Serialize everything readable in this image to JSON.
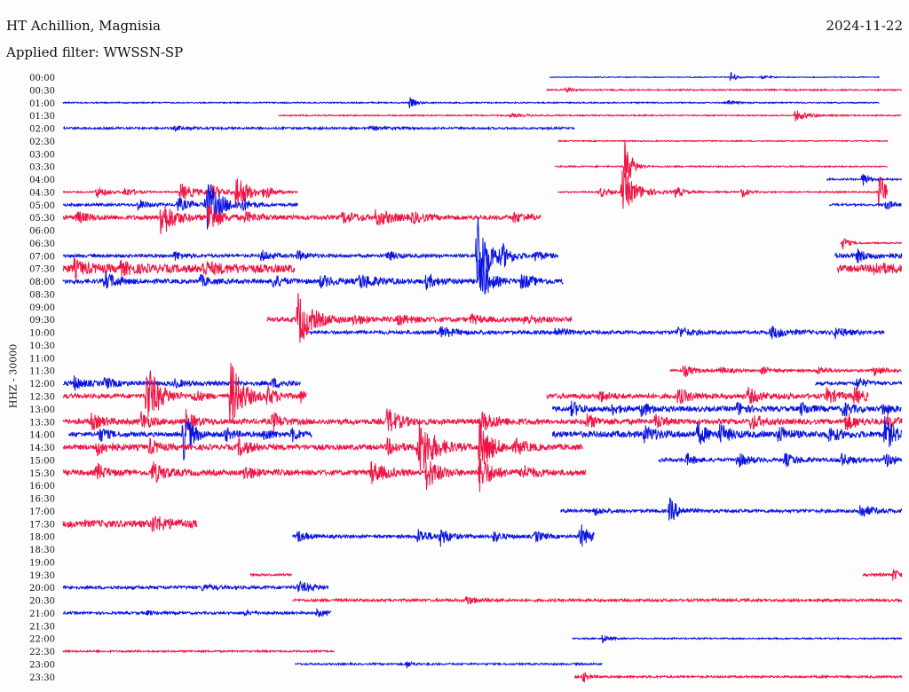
{
  "header": {
    "station": "HT Achillion, Magnisia",
    "date": "2024-11-22",
    "filter": "Applied filter: WWSSN-SP"
  },
  "chart_data": {
    "type": "line",
    "title": "HT Achillion, Magnisia",
    "subtitle": "Applied filter: WWSSN-SP",
    "date": "2024-11-22",
    "ylabel": "HHZ - 30000",
    "colors": {
      "even": "#0a14e0",
      "odd": "#f01444"
    },
    "row_labels": [
      "00:00",
      "00:30",
      "01:00",
      "01:30",
      "02:00",
      "02:30",
      "03:00",
      "03:30",
      "04:00",
      "04:30",
      "05:00",
      "05:30",
      "06:00",
      "06:30",
      "07:00",
      "07:30",
      "08:00",
      "08:30",
      "09:00",
      "09:30",
      "10:00",
      "10:30",
      "11:00",
      "11:30",
      "12:00",
      "12:30",
      "13:00",
      "13:30",
      "14:00",
      "14:30",
      "15:00",
      "15:30",
      "16:00",
      "16:30",
      "17:00",
      "17:30",
      "18:00",
      "18:30",
      "19:00",
      "19:30",
      "20:00",
      "20:30",
      "21:00",
      "21:30",
      "22:00",
      "22:30",
      "23:00",
      "23:30"
    ],
    "x_unit": "minutes past row start",
    "x_range": [
      0,
      30
    ],
    "traces": [
      {
        "row": "00:00",
        "start": 17.4,
        "end": 29.2,
        "noise": 0.5,
        "bursts": [
          [
            23.9,
            7,
            0.15
          ],
          [
            25,
            2,
            0.2
          ]
        ]
      },
      {
        "row": "00:30",
        "start": 17.3,
        "end": 30,
        "noise": 0.8,
        "bursts": [
          [
            18,
            3,
            0.2
          ]
        ]
      },
      {
        "row": "01:00",
        "start": 0,
        "end": 29.2,
        "noise": 0.7,
        "bursts": [
          [
            12.4,
            6,
            0.2
          ],
          [
            23.8,
            2,
            0.3
          ]
        ]
      },
      {
        "row": "01:30",
        "start": 7.7,
        "end": 30,
        "noise": 0.7,
        "bursts": [
          [
            26.2,
            6,
            0.4
          ],
          [
            16,
            2,
            0.5
          ]
        ]
      },
      {
        "row": "02:00",
        "start": 0,
        "end": 18.3,
        "noise": 1.2,
        "bursts": [
          [
            4,
            2,
            0.5
          ],
          [
            11,
            2,
            0.5
          ]
        ]
      },
      {
        "row": "02:30",
        "start": 17.7,
        "end": 29.5,
        "noise": 0.6,
        "bursts": []
      },
      {
        "row": "03:00",
        "start": 0,
        "end": 0,
        "noise": 0,
        "bursts": []
      },
      {
        "row": "03:30",
        "start": 17.6,
        "end": 29.5,
        "noise": 0.8,
        "bursts": [
          [
            20.1,
            35,
            0.2
          ]
        ]
      },
      {
        "row": "04:00",
        "start": 27.3,
        "end": 30,
        "noise": 1,
        "bursts": [
          [
            28.6,
            8,
            0.2
          ]
        ]
      },
      {
        "row": "04:30",
        "start": 0,
        "end": 8.4,
        "noise": 0.8,
        "bursts": [
          [
            1.2,
            7,
            0.3
          ],
          [
            2.2,
            6,
            0.3
          ],
          [
            4.2,
            10,
            0.5
          ],
          [
            5.3,
            8,
            0.4
          ],
          [
            6.2,
            22,
            0.4
          ],
          [
            7.2,
            7,
            0.3
          ]
        ]
      },
      {
        "row": "04:30",
        "start": 17.7,
        "end": 29.5,
        "noise": 0.8,
        "bursts": [
          [
            19.2,
            6,
            0.3
          ],
          [
            20.0,
            24,
            0.5
          ],
          [
            21.9,
            6,
            0.3
          ],
          [
            24.3,
            6,
            0.2
          ],
          [
            29.2,
            22,
            0.3
          ]
        ]
      },
      {
        "row": "05:00",
        "start": 0,
        "end": 8.4,
        "noise": 1.5,
        "bursts": [
          [
            2.7,
            6,
            0.3
          ],
          [
            4.1,
            8,
            0.4
          ],
          [
            5.1,
            30,
            0.5
          ],
          [
            6.4,
            5,
            0.3
          ]
        ]
      },
      {
        "row": "05:00",
        "start": 27.4,
        "end": 30,
        "noise": 1.2,
        "bursts": [
          [
            29.4,
            6,
            0.3
          ]
        ]
      },
      {
        "row": "05:30",
        "start": 0,
        "end": 17.1,
        "noise": 2.5,
        "bursts": [
          [
            0.5,
            6,
            0.4
          ],
          [
            3.5,
            24,
            0.4
          ],
          [
            5.2,
            22,
            0.3
          ],
          [
            6.5,
            5,
            0.5
          ],
          [
            10,
            6,
            0.5
          ],
          [
            11.2,
            8,
            0.6
          ],
          [
            12.5,
            5,
            0.4
          ],
          [
            16.1,
            5,
            0.5
          ]
        ]
      },
      {
        "row": "06:00",
        "start": 0,
        "end": 0,
        "noise": 0,
        "bursts": []
      },
      {
        "row": "06:30",
        "start": 27.8,
        "end": 30,
        "noise": 0.8,
        "bursts": [
          [
            27.9,
            7,
            0.2
          ]
        ]
      },
      {
        "row": "07:00",
        "start": 0,
        "end": 17.7,
        "noise": 1.8,
        "bursts": [
          [
            4,
            5,
            0.3
          ],
          [
            7.1,
            6,
            0.3
          ],
          [
            8.4,
            5,
            0.3
          ],
          [
            11.6,
            6,
            0.3
          ],
          [
            14.8,
            48,
            0.4
          ],
          [
            15.7,
            10,
            0.3
          ],
          [
            16.9,
            6,
            0.3
          ]
        ]
      },
      {
        "row": "07:00",
        "start": 27.6,
        "end": 30,
        "noise": 3,
        "bursts": [
          [
            28.4,
            6,
            0.3
          ]
        ]
      },
      {
        "row": "07:30",
        "start": 0,
        "end": 8.3,
        "noise": 4.5,
        "bursts": [
          [
            0.4,
            8,
            0.4
          ],
          [
            2,
            6,
            0.5
          ],
          [
            5,
            6,
            0.6
          ]
        ]
      },
      {
        "row": "07:30",
        "start": 27.7,
        "end": 30,
        "noise": 4,
        "bursts": [
          [
            29,
            6,
            0.5
          ]
        ]
      },
      {
        "row": "08:00",
        "start": 0,
        "end": 17.9,
        "noise": 2.5,
        "bursts": [
          [
            1.5,
            10,
            0.4
          ],
          [
            4.9,
            6,
            0.3
          ],
          [
            7.5,
            8,
            0.3
          ],
          [
            9.2,
            6,
            0.5
          ],
          [
            10.6,
            8,
            0.6
          ],
          [
            13,
            7,
            0.4
          ],
          [
            14.9,
            30,
            0.3
          ],
          [
            16.4,
            8,
            0.4
          ]
        ]
      },
      {
        "row": "08:30",
        "start": 0,
        "end": 0,
        "noise": 0,
        "bursts": []
      },
      {
        "row": "09:00",
        "start": 0,
        "end": 0,
        "noise": 0,
        "bursts": []
      },
      {
        "row": "09:30",
        "start": 7.3,
        "end": 18.2,
        "noise": 2.5,
        "bursts": [
          [
            8.4,
            30,
            0.5
          ],
          [
            10.4,
            5,
            0.4
          ],
          [
            12,
            5,
            0.5
          ],
          [
            14.6,
            5,
            0.4
          ],
          [
            16.5,
            5,
            0.5
          ]
        ]
      },
      {
        "row": "10:00",
        "start": 8.8,
        "end": 29.4,
        "noise": 2,
        "bursts": [
          [
            13.5,
            6,
            0.5
          ],
          [
            17.6,
            5,
            0.4
          ],
          [
            22,
            6,
            0.4
          ],
          [
            25.3,
            7,
            0.5
          ],
          [
            27.6,
            6,
            0.4
          ]
        ]
      },
      {
        "row": "10:30",
        "start": 0,
        "end": 0,
        "noise": 0,
        "bursts": []
      },
      {
        "row": "11:00",
        "start": 0,
        "end": 0,
        "noise": 0,
        "bursts": []
      },
      {
        "row": "11:30",
        "start": 21.7,
        "end": 30,
        "noise": 1.4,
        "bursts": [
          [
            22.2,
            7,
            0.3
          ],
          [
            23.5,
            4,
            0.3
          ],
          [
            25,
            4,
            0.3
          ],
          [
            27,
            4,
            0.3
          ],
          [
            29,
            5,
            0.4
          ]
        ]
      },
      {
        "row": "12:00",
        "start": 0,
        "end": 8.5,
        "noise": 2.5,
        "bursts": [
          [
            0.4,
            7,
            0.3
          ],
          [
            1.5,
            6,
            0.3
          ],
          [
            4,
            4,
            0.3
          ],
          [
            7.5,
            5,
            0.3
          ]
        ]
      },
      {
        "row": "12:00",
        "start": 26.9,
        "end": 30,
        "noise": 1.8,
        "bursts": [
          [
            28.4,
            7,
            0.3
          ]
        ]
      },
      {
        "row": "12:30",
        "start": 0,
        "end": 8.7,
        "noise": 2.5,
        "bursts": [
          [
            3.0,
            38,
            0.4
          ],
          [
            4.7,
            6,
            0.3
          ],
          [
            6.0,
            40,
            0.4
          ],
          [
            7.3,
            10,
            0.3
          ],
          [
            8.5,
            6,
            0.3
          ]
        ]
      },
      {
        "row": "12:30",
        "start": 17.3,
        "end": 28.8,
        "noise": 2.8,
        "bursts": [
          [
            19.2,
            6,
            0.3
          ],
          [
            22,
            8,
            0.4
          ],
          [
            24.5,
            8,
            0.4
          ],
          [
            27.3,
            8,
            0.4
          ],
          [
            28.3,
            8,
            0.3
          ]
        ]
      },
      {
        "row": "13:00",
        "start": 17.5,
        "end": 30,
        "noise": 2.8,
        "bursts": [
          [
            18.2,
            8,
            0.3
          ],
          [
            19.6,
            6,
            0.3
          ],
          [
            20.7,
            8,
            0.3
          ],
          [
            24.1,
            7,
            0.3
          ],
          [
            26.4,
            7,
            0.3
          ],
          [
            27.9,
            8,
            0.3
          ],
          [
            29.3,
            6,
            0.3
          ]
        ]
      },
      {
        "row": "13:30",
        "start": 0,
        "end": 17,
        "noise": 3,
        "bursts": [
          [
            1,
            8,
            0.4
          ],
          [
            2.8,
            10,
            0.3
          ],
          [
            4.4,
            12,
            0.3
          ],
          [
            7.5,
            10,
            0.3
          ],
          [
            11.6,
            15,
            0.4
          ],
          [
            15,
            10,
            0.5
          ]
        ]
      },
      {
        "row": "13:30",
        "start": 17,
        "end": 30,
        "noise": 2.8,
        "bursts": [
          [
            18.7,
            8,
            0.4
          ],
          [
            21.2,
            8,
            0.3
          ],
          [
            24.6,
            8,
            0.4
          ],
          [
            28,
            9,
            0.4
          ],
          [
            29.5,
            8,
            0.3
          ]
        ]
      },
      {
        "row": "14:00",
        "start": 0.2,
        "end": 8.9,
        "noise": 2.5,
        "bursts": [
          [
            1.3,
            8,
            0.3
          ],
          [
            4.3,
            30,
            0.3
          ],
          [
            5.8,
            7,
            0.3
          ],
          [
            7.2,
            7,
            0.3
          ],
          [
            8.2,
            7,
            0.3
          ]
        ]
      },
      {
        "row": "14:00",
        "start": 17.5,
        "end": 30,
        "noise": 3.5,
        "bursts": [
          [
            20.8,
            8,
            0.4
          ],
          [
            22.7,
            12,
            0.3
          ],
          [
            23.5,
            10,
            0.3
          ],
          [
            25.6,
            9,
            0.3
          ],
          [
            27.4,
            8,
            0.3
          ],
          [
            29.4,
            18,
            0.3
          ]
        ]
      },
      {
        "row": "14:30",
        "start": 0,
        "end": 18.6,
        "noise": 3,
        "bursts": [
          [
            1.2,
            8,
            0.4
          ],
          [
            3.1,
            8,
            0.3
          ],
          [
            6.3,
            9,
            0.4
          ],
          [
            11.6,
            8,
            0.4
          ],
          [
            12.7,
            35,
            0.5
          ],
          [
            14.9,
            28,
            0.4
          ],
          [
            16.2,
            7,
            0.4
          ]
        ]
      },
      {
        "row": "15:00",
        "start": 21.3,
        "end": 30,
        "noise": 2,
        "bursts": [
          [
            22.3,
            6,
            0.3
          ],
          [
            24.1,
            8,
            0.4
          ],
          [
            25.8,
            7,
            0.4
          ],
          [
            27.8,
            7,
            0.4
          ],
          [
            29.4,
            8,
            0.3
          ]
        ]
      },
      {
        "row": "15:30",
        "start": 0,
        "end": 18.7,
        "noise": 3,
        "bursts": [
          [
            1.2,
            10,
            0.3
          ],
          [
            3.2,
            12,
            0.4
          ],
          [
            6.5,
            7,
            0.4
          ],
          [
            11,
            12,
            0.5
          ],
          [
            13,
            18,
            0.4
          ],
          [
            14.9,
            20,
            0.4
          ],
          [
            16.4,
            8,
            0.4
          ]
        ]
      },
      {
        "row": "16:00",
        "start": 0,
        "end": 0,
        "noise": 0,
        "bursts": []
      },
      {
        "row": "16:30",
        "start": 0,
        "end": 0,
        "noise": 0,
        "bursts": []
      },
      {
        "row": "17:00",
        "start": 17.8,
        "end": 30,
        "noise": 1.8,
        "bursts": [
          [
            19,
            4,
            0.3
          ],
          [
            21.7,
            14,
            0.3
          ],
          [
            28.5,
            8,
            0.4
          ]
        ]
      },
      {
        "row": "17:30",
        "start": 0,
        "end": 4.8,
        "noise": 4,
        "bursts": [
          [
            3.2,
            8,
            0.5
          ]
        ]
      },
      {
        "row": "18:00",
        "start": 8.2,
        "end": 19,
        "noise": 1.8,
        "bursts": [
          [
            8.4,
            6,
            0.3
          ],
          [
            12.7,
            8,
            0.4
          ],
          [
            13.5,
            10,
            0.3
          ],
          [
            15.4,
            6,
            0.3
          ],
          [
            16.9,
            6,
            0.3
          ],
          [
            18.5,
            14,
            0.3
          ]
        ]
      },
      {
        "row": "18:30",
        "start": 0,
        "end": 0,
        "noise": 0,
        "bursts": []
      },
      {
        "row": "19:00",
        "start": 0,
        "end": 0,
        "noise": 0,
        "bursts": []
      },
      {
        "row": "19:30",
        "start": 6.7,
        "end": 8.2,
        "noise": 1.2,
        "bursts": []
      },
      {
        "row": "19:30",
        "start": 28.6,
        "end": 30,
        "noise": 1.5,
        "bursts": [
          [
            29.7,
            7,
            0.2
          ]
        ]
      },
      {
        "row": "20:00",
        "start": 0,
        "end": 9.5,
        "noise": 1.8,
        "bursts": [
          [
            5,
            3,
            0.4
          ],
          [
            8.4,
            6,
            0.5
          ]
        ]
      },
      {
        "row": "20:30",
        "start": 8.2,
        "end": 30,
        "noise": 1.5,
        "bursts": [
          [
            14.4,
            5,
            0.4
          ]
        ]
      },
      {
        "row": "21:00",
        "start": 0,
        "end": 9.6,
        "noise": 1.4,
        "bursts": [
          [
            3,
            2,
            0.3
          ],
          [
            6.5,
            2,
            0.3
          ],
          [
            9.1,
            4,
            0.3
          ]
        ]
      },
      {
        "row": "21:30",
        "start": 0,
        "end": 0,
        "noise": 0,
        "bursts": []
      },
      {
        "row": "22:00",
        "start": 18.2,
        "end": 30,
        "noise": 0.8,
        "bursts": [
          [
            19.3,
            5,
            0.2
          ]
        ]
      },
      {
        "row": "22:30",
        "start": 0,
        "end": 9.7,
        "noise": 1,
        "bursts": []
      },
      {
        "row": "23:00",
        "start": 8.3,
        "end": 19.3,
        "noise": 1,
        "bursts": [
          [
            12.3,
            4,
            0.2
          ]
        ]
      },
      {
        "row": "23:30",
        "start": 18.3,
        "end": 30,
        "noise": 1.2,
        "bursts": [
          [
            18.6,
            6,
            0.2
          ]
        ]
      }
    ]
  }
}
